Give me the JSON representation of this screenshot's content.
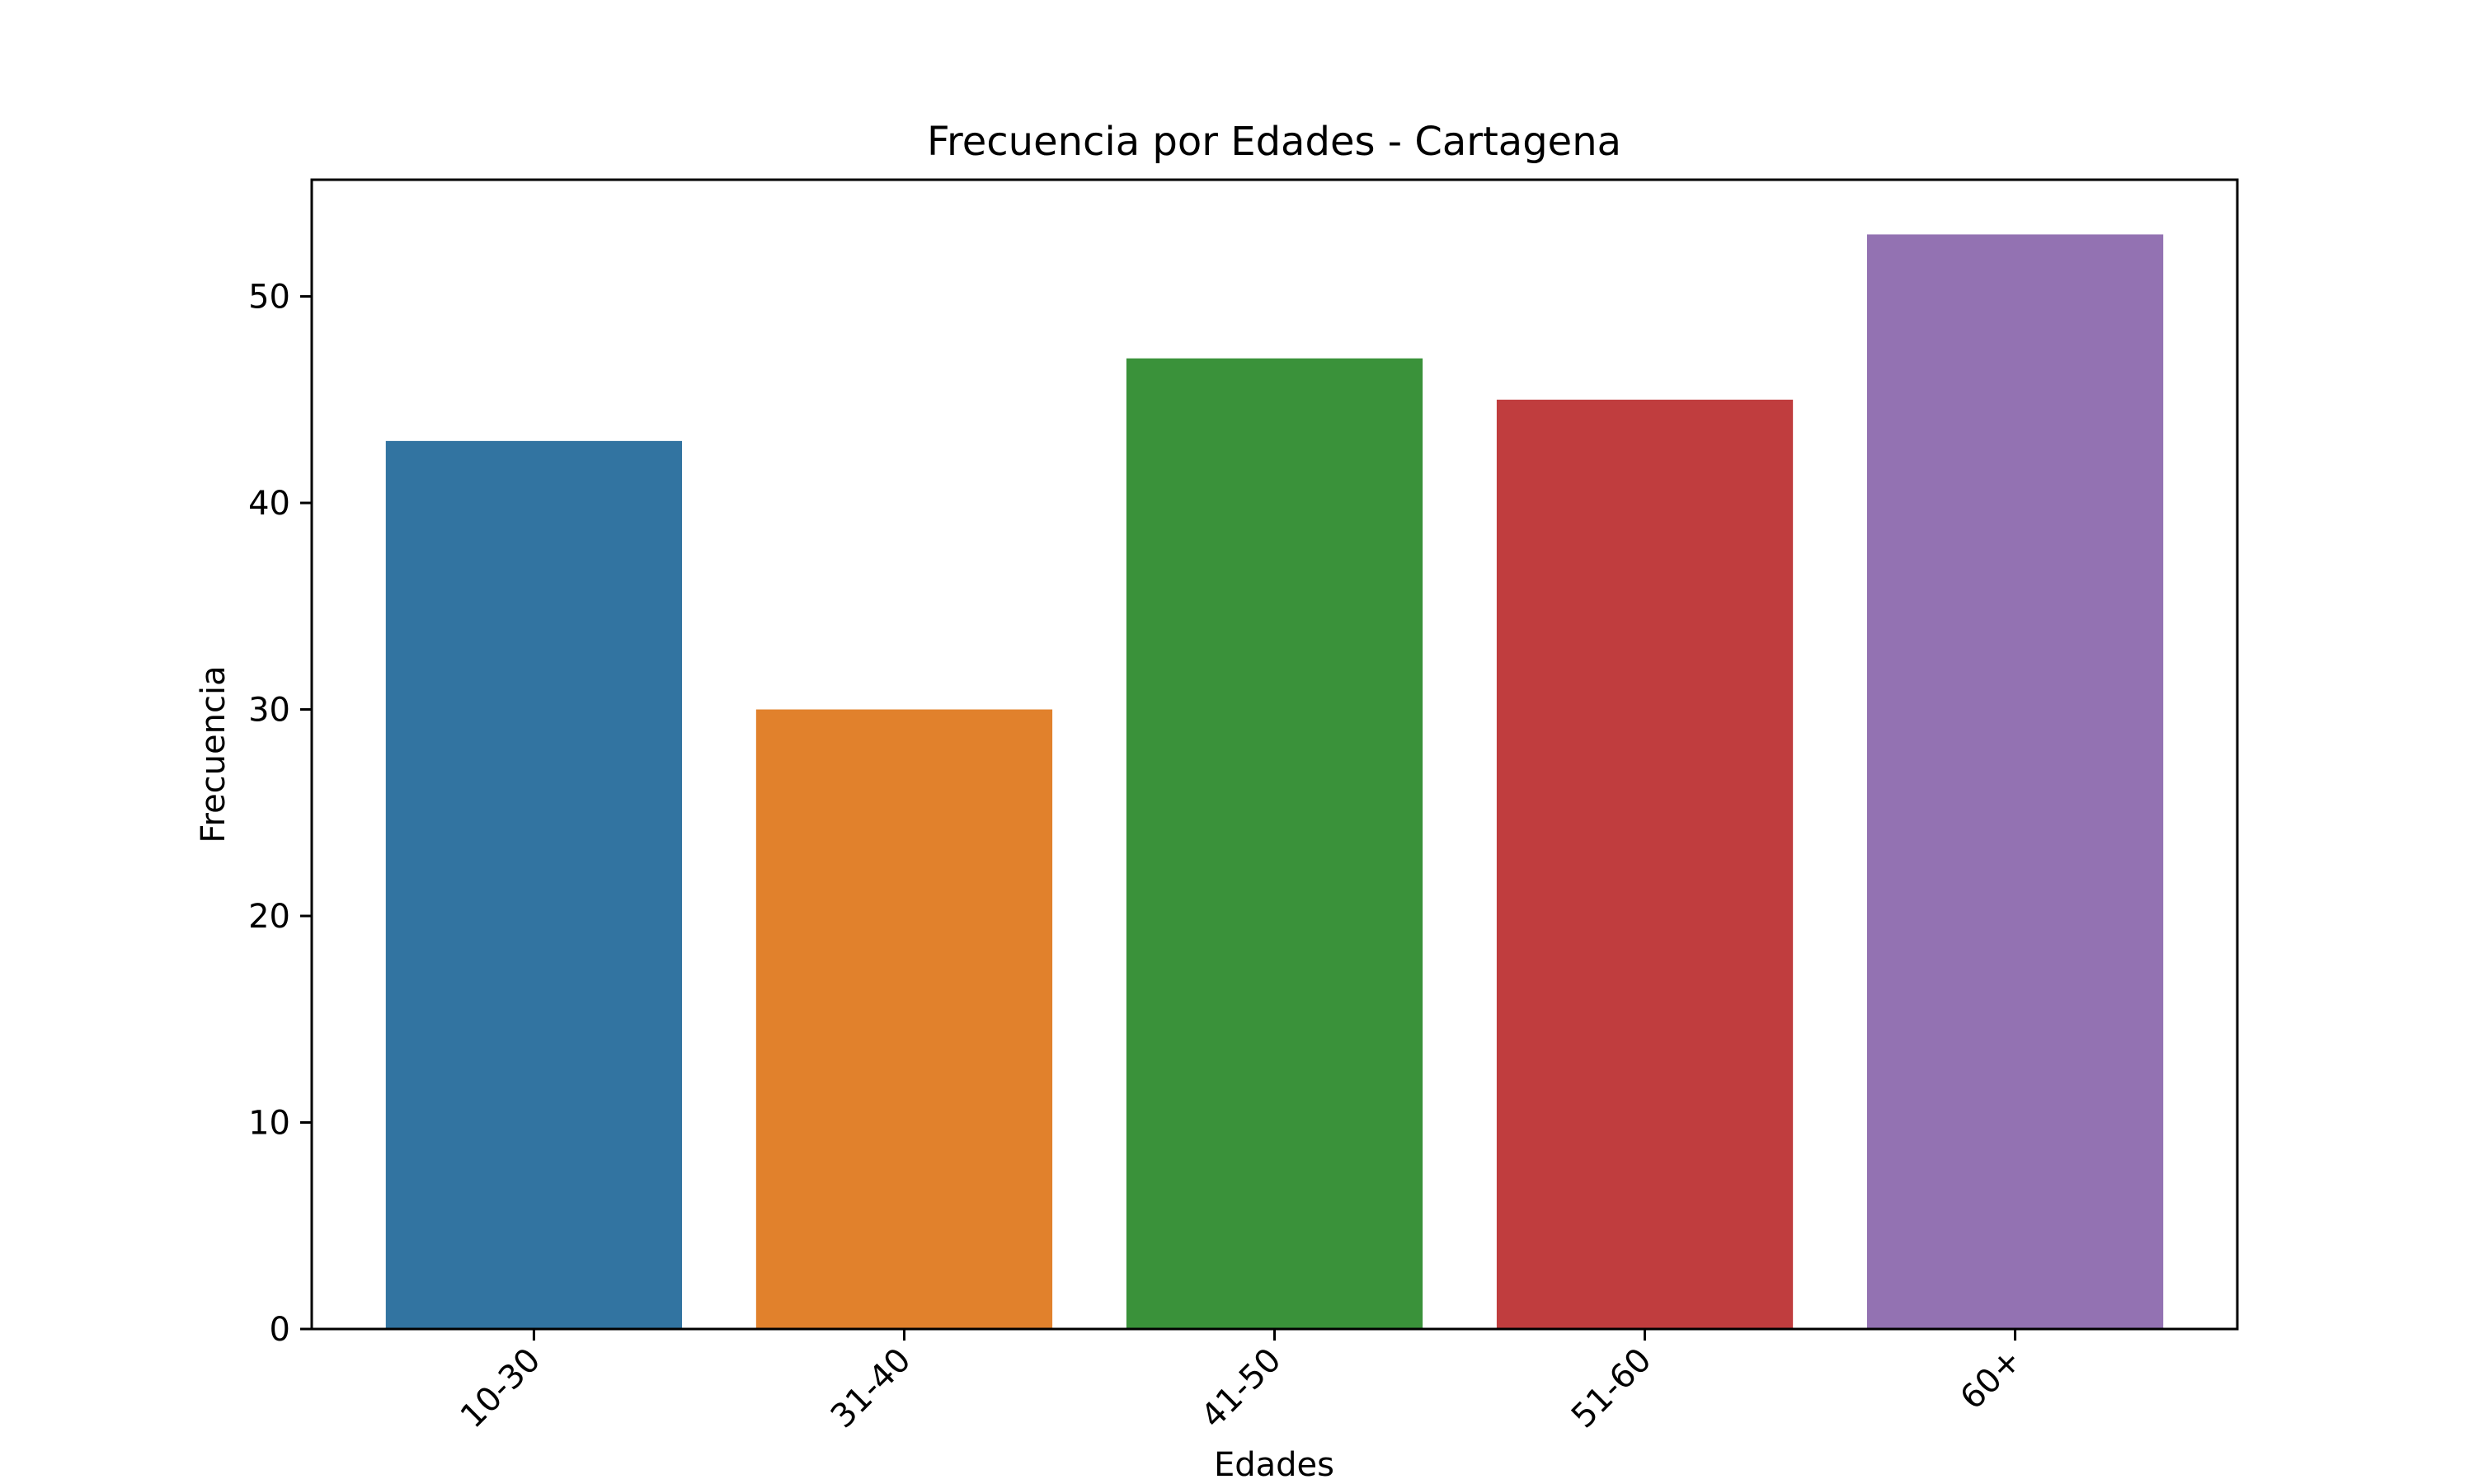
{
  "chart_data": {
    "type": "bar",
    "title": "Frecuencia por Edades - Cartagena",
    "xlabel": "Edades",
    "ylabel": "Frecuencia",
    "categories": [
      "10-30",
      "31-40",
      "41-50",
      "51-60",
      "60+"
    ],
    "values": [
      43,
      30,
      47,
      45,
      53
    ],
    "ylim": [
      0,
      55.65
    ],
    "yticks": [
      0,
      10,
      20,
      30,
      40,
      50
    ],
    "colors": [
      "#3274a1",
      "#e1812c",
      "#3a923a",
      "#c03d3e",
      "#9372b2"
    ],
    "grid": false,
    "legend": "none"
  }
}
